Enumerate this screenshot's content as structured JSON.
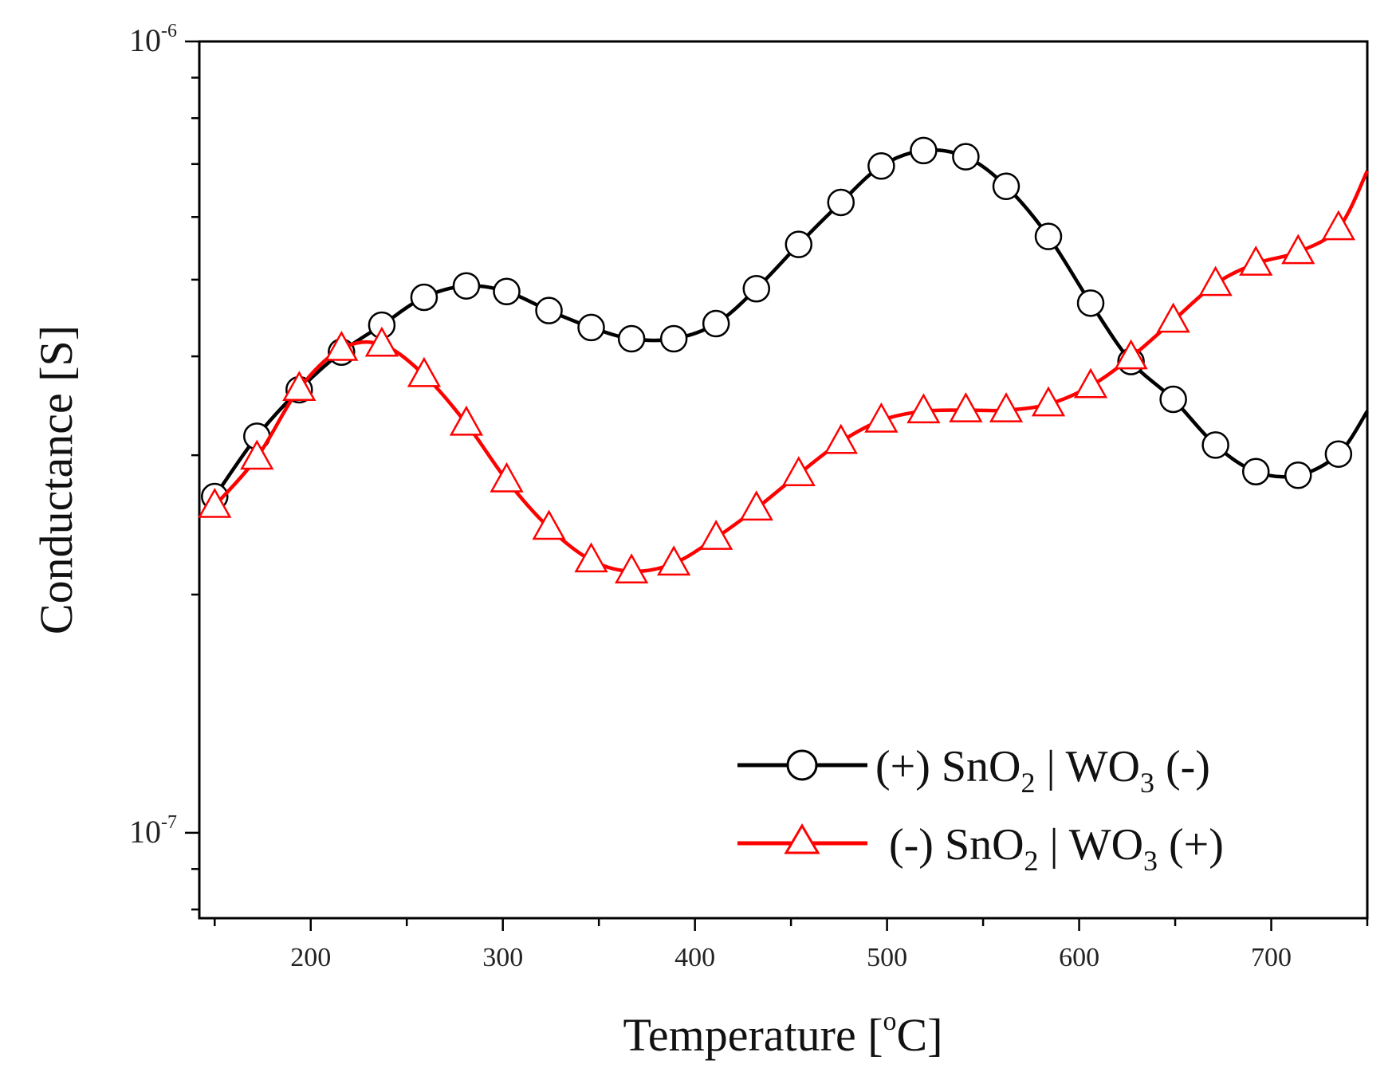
{
  "chart_data": {
    "type": "line",
    "xlabel": {
      "main": "Temperature [",
      "sup": "o",
      "tail": "C]"
    },
    "ylabel": "Conductance [S]",
    "xlim": [
      142,
      750
    ],
    "ylim": [
      7.8e-08,
      1e-06
    ],
    "yscale": "log",
    "x_ticks": [
      200,
      300,
      400,
      500,
      600,
      700
    ],
    "x_tick_labels": [
      "200",
      "300",
      "400",
      "500",
      "600",
      "700"
    ],
    "y_ticks": [
      {
        "value": 1e-06,
        "base": "10",
        "exp": "-6"
      },
      {
        "value": 1e-07,
        "base": "10",
        "exp": "-7"
      }
    ],
    "legend_position": "bottom-right",
    "series": [
      {
        "name": "black-circles",
        "label": {
          "pre": "(+) SnO",
          "sub1": "2",
          "mid": " | WO",
          "sub2": "3",
          "post": " (-)"
        },
        "color": "#000000",
        "marker": "circle",
        "x": [
          150,
          172,
          194,
          216,
          237,
          259,
          281,
          302,
          324,
          346,
          367,
          389,
          411,
          432,
          454,
          476,
          497,
          519,
          541,
          562,
          584,
          606,
          627,
          649,
          671,
          692,
          714,
          735
        ],
        "y": [
          2.66e-07,
          3.17e-07,
          3.63e-07,
          4.05e-07,
          4.38e-07,
          4.75e-07,
          4.91e-07,
          4.83e-07,
          4.57e-07,
          4.35e-07,
          4.21e-07,
          4.21e-07,
          4.4e-07,
          4.87e-07,
          5.54e-07,
          6.26e-07,
          6.96e-07,
          7.28e-07,
          7.15e-07,
          6.56e-07,
          5.67e-07,
          4.67e-07,
          3.94e-07,
          3.53e-07,
          3.09e-07,
          2.86e-07,
          2.83e-07,
          3.01e-07
        ],
        "line_end": {
          "x": 750,
          "y": 3.41e-07
        }
      },
      {
        "name": "red-triangles",
        "label": {
          "pre": "(-) SnO",
          "sub1": "2",
          "mid": " | WO",
          "sub2": "3",
          "post": " (+)"
        },
        "color": "#ff0000",
        "marker": "triangle",
        "x": [
          150,
          172,
          194,
          216,
          237,
          259,
          281,
          302,
          324,
          346,
          367,
          389,
          411,
          432,
          454,
          476,
          497,
          519,
          541,
          562,
          584,
          606,
          627,
          649,
          671,
          692,
          714,
          735
        ],
        "y": [
          2.59e-07,
          2.98e-07,
          3.64e-07,
          4.09e-07,
          4.14e-07,
          3.79e-07,
          3.29e-07,
          2.79e-07,
          2.43e-07,
          2.21e-07,
          2.14e-07,
          2.19e-07,
          2.36e-07,
          2.57e-07,
          2.84e-07,
          3.12e-07,
          3.32e-07,
          3.41e-07,
          3.42e-07,
          3.42e-07,
          3.48e-07,
          3.67e-07,
          3.99e-07,
          4.44e-07,
          4.94e-07,
          5.24e-07,
          5.42e-07,
          5.81e-07
        ],
        "line_end": {
          "x": 750,
          "y": 6.86e-07
        }
      }
    ]
  }
}
